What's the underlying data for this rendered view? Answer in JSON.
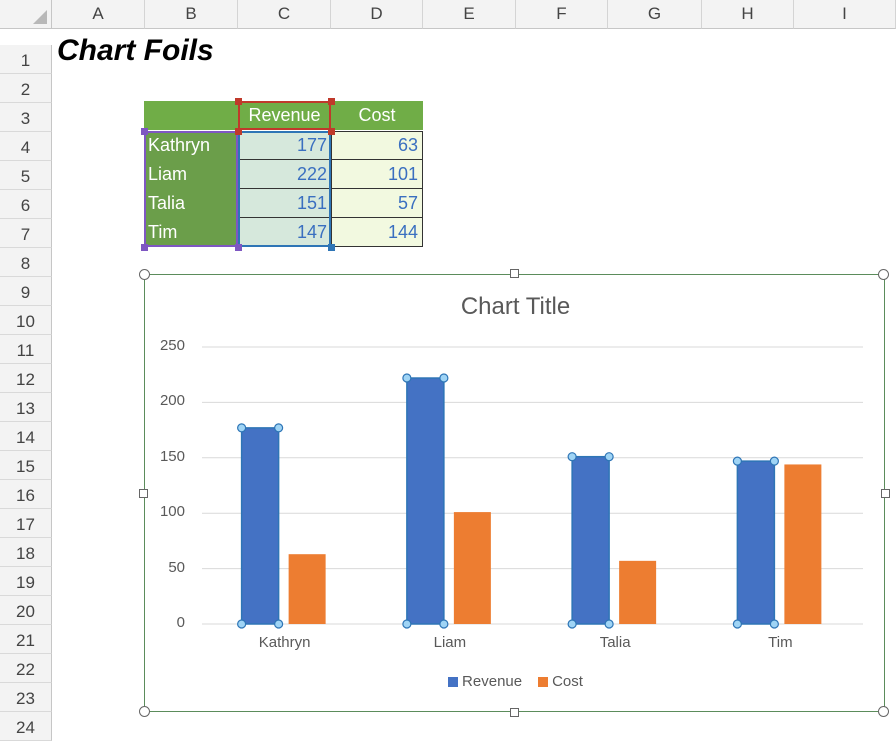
{
  "sheet": {
    "columns": [
      "A",
      "B",
      "C",
      "D",
      "E",
      "F",
      "G",
      "H",
      "I"
    ],
    "rows": [
      "1",
      "2",
      "3",
      "4",
      "5",
      "6",
      "7",
      "8",
      "9",
      "10",
      "11",
      "12",
      "13",
      "14",
      "15",
      "16",
      "17",
      "18",
      "19",
      "20",
      "21",
      "22",
      "23",
      "24"
    ],
    "title": "Chart Foils"
  },
  "table": {
    "headers": [
      "Revenue",
      "Cost"
    ],
    "rows": [
      {
        "name": "Kathryn",
        "revenue": "177",
        "cost": "63"
      },
      {
        "name": "Liam",
        "revenue": "222",
        "cost": "101"
      },
      {
        "name": "Talia",
        "revenue": "151",
        "cost": "57"
      },
      {
        "name": "Tim",
        "revenue": "147",
        "cost": "144"
      }
    ]
  },
  "colors": {
    "header_green": "#70ad47",
    "revenue_blue": "#4472c4",
    "cost_orange": "#ed7d31",
    "selection_red": "#c0392b",
    "selection_purple": "#7e57c2",
    "selection_blue": "#2e75b6"
  },
  "chart_data": {
    "type": "bar",
    "title": "Chart Title",
    "categories": [
      "Kathryn",
      "Liam",
      "Talia",
      "Tim"
    ],
    "series": [
      {
        "name": "Revenue",
        "values": [
          177,
          222,
          151,
          147
        ],
        "color": "#4472c4"
      },
      {
        "name": "Cost",
        "values": [
          63,
          101,
          57,
          144
        ],
        "color": "#ed7d31"
      }
    ],
    "yticks": [
      "250",
      "200",
      "150",
      "100",
      "50",
      "0"
    ],
    "ylim": [
      0,
      250
    ],
    "grid": true,
    "legend": "bottom",
    "selected_series": "Revenue"
  }
}
